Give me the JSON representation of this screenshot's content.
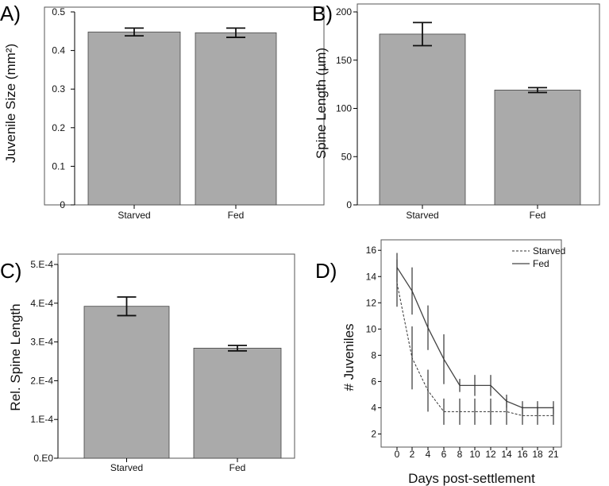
{
  "chart_data": [
    {
      "panel": "A)",
      "type": "bar",
      "ylabel": "Juvenile Size (mm²)",
      "categories": [
        "Starved",
        "Fed"
      ],
      "values": [
        0.448,
        0.446
      ],
      "errors": [
        0.01,
        0.012
      ],
      "ylim": [
        0,
        0.5
      ],
      "yticks": [
        0,
        0.1,
        0.2,
        0.3,
        0.4,
        0.5
      ],
      "ytick_labels": [
        "0",
        "0.1",
        "0.2",
        "0.3",
        "0.4",
        "0.5"
      ]
    },
    {
      "panel": "B)",
      "type": "bar",
      "ylabel": "Spine Length (µm)",
      "categories": [
        "Starved",
        "Fed"
      ],
      "values": [
        177,
        119
      ],
      "errors": [
        12,
        2.5
      ],
      "ylim": [
        0,
        200
      ],
      "yticks": [
        0,
        50,
        100,
        150,
        200
      ],
      "ytick_labels": [
        "0",
        "50",
        "100",
        "150",
        "200"
      ]
    },
    {
      "panel": "C)",
      "type": "bar",
      "ylabel": "Rel. Spine Length",
      "categories": [
        "Starved",
        "Fed"
      ],
      "values": [
        0.000392,
        0.000284
      ],
      "errors": [
        2.4e-05,
        7e-06
      ],
      "ylim": [
        0,
        0.0005
      ],
      "yticks": [
        0,
        0.0001,
        0.0002,
        0.0003,
        0.0004,
        0.0005
      ],
      "ytick_labels": [
        "0.E0",
        "1.E-4",
        "2.E-4",
        "3.E-4",
        "4.E-4",
        "5.E-4"
      ]
    },
    {
      "panel": "D)",
      "type": "line",
      "xlabel": "Days post-settlement",
      "ylabel": "# Juveniles",
      "x": [
        "0",
        "2",
        "4",
        "6",
        "8",
        "10",
        "12",
        "14",
        "16",
        "18",
        "21"
      ],
      "ylim": [
        1,
        16.8
      ],
      "yticks": [
        2,
        4,
        6,
        8,
        10,
        12,
        14,
        16
      ],
      "ytick_labels": [
        "2",
        "4",
        "6",
        "8",
        "10",
        "12",
        "14",
        "16"
      ],
      "legend": "top-right",
      "series": [
        {
          "name": "Starved",
          "style": "dashed",
          "values": [
            13.5,
            7.8,
            5.3,
            3.7,
            3.7,
            3.7,
            3.7,
            3.7,
            3.4,
            3.4,
            3.4
          ],
          "err": [
            1.8,
            2.4,
            1.6,
            1.0,
            1.0,
            1.0,
            1.0,
            1.0,
            0.7,
            0.7,
            0.7
          ]
        },
        {
          "name": "Fed",
          "style": "solid",
          "values": [
            14.7,
            12.9,
            10.1,
            7.7,
            5.7,
            5.7,
            5.7,
            4.5,
            4.0,
            4.0,
            4.0
          ],
          "err": [
            1.1,
            1.8,
            1.7,
            1.9,
            0.5,
            0.8,
            0.8,
            0.5,
            0.5,
            0.5,
            0.5
          ]
        }
      ]
    }
  ]
}
